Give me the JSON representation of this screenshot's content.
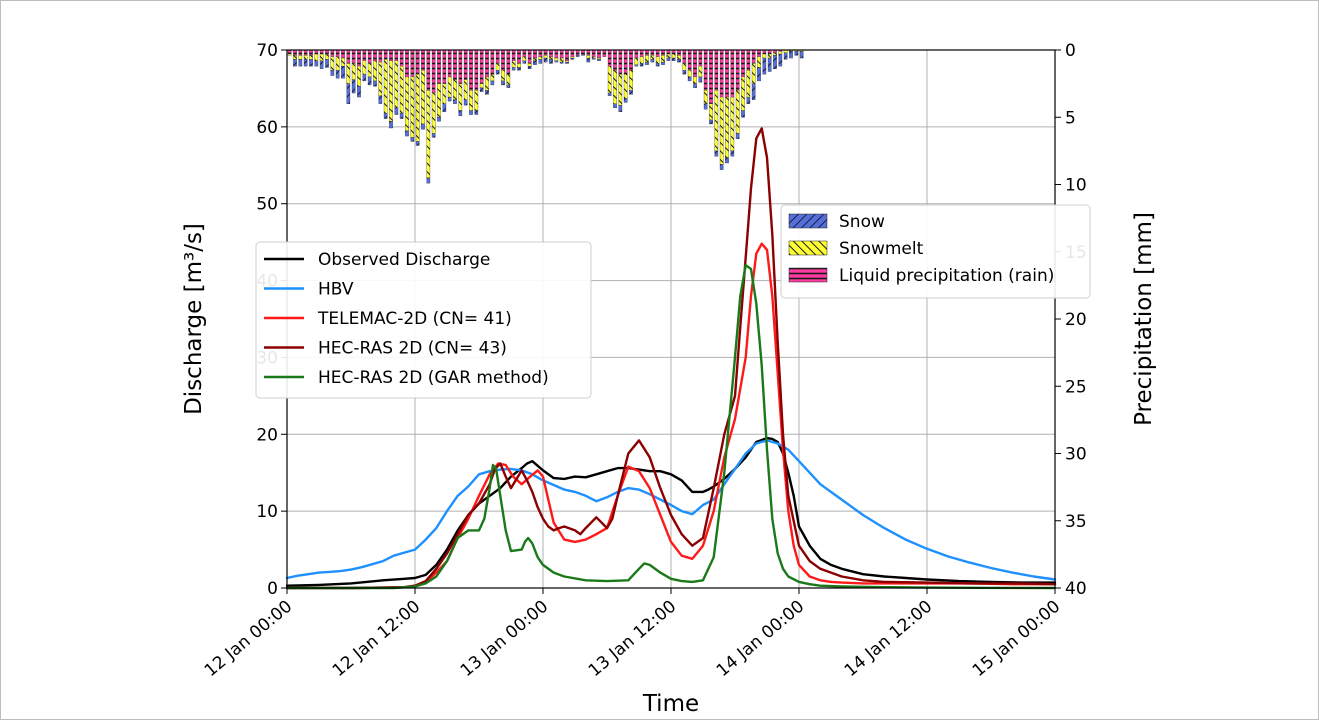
{
  "chart_data": {
    "type": "line",
    "title": "",
    "xlabel": "Time",
    "ylabel": "Discharge [m³/s]",
    "y2label": "Precipitation [mm]",
    "x_ticks": [
      {
        "value": 0,
        "label": "12 Jan 00:00"
      },
      {
        "value": 12,
        "label": "12 Jan 12:00"
      },
      {
        "value": 24,
        "label": "13 Jan 00:00"
      },
      {
        "value": 36,
        "label": "13 Jan 12:00"
      },
      {
        "value": 48,
        "label": "14 Jan 00:00"
      },
      {
        "value": 60,
        "label": "14 Jan 12:00"
      },
      {
        "value": 72,
        "label": "15 Jan 00:00"
      }
    ],
    "x_unit": "hours from 12 Jan 00:00",
    "xlim": [
      0,
      72
    ],
    "ylim": [
      0,
      70
    ],
    "y_ticks": [
      0,
      10,
      20,
      30,
      40,
      50,
      60,
      70
    ],
    "y2lim_inverted": [
      0,
      40
    ],
    "y2_ticks": [
      0,
      5,
      10,
      15,
      20,
      25,
      30,
      35,
      40
    ],
    "grid": true,
    "legend_lines_position": "center-left",
    "legend_bars_position": "upper-right",
    "series": [
      {
        "name": "Observed Discharge",
        "color": "#000000",
        "x": [
          0,
          3,
          6,
          9,
          11,
          12,
          13,
          14,
          15,
          16,
          17,
          18,
          19,
          20,
          21,
          22,
          22.5,
          23,
          24,
          25,
          26,
          27,
          28,
          29,
          30,
          31,
          32,
          33,
          34,
          35,
          36,
          37,
          38,
          39,
          39.5,
          40,
          41,
          42,
          43,
          44,
          45,
          45.5,
          46,
          46.5,
          47,
          47.5,
          48,
          49,
          50,
          51,
          52,
          54,
          56,
          58,
          60,
          63,
          66,
          69,
          72
        ],
        "y": [
          0.3,
          0.4,
          0.6,
          1.0,
          1.2,
          1.3,
          1.7,
          3.0,
          5.0,
          7.5,
          9.5,
          11.0,
          12.0,
          13.0,
          14.5,
          15.6,
          16.2,
          16.5,
          15.3,
          14.3,
          14.2,
          14.5,
          14.4,
          14.8,
          15.2,
          15.6,
          15.6,
          15.4,
          15.2,
          15.2,
          14.8,
          14.0,
          12.5,
          12.5,
          12.8,
          13.2,
          14.2,
          15.5,
          17.0,
          19.0,
          19.5,
          19.4,
          19.0,
          17.5,
          15.0,
          12.0,
          8.0,
          5.5,
          3.8,
          3.0,
          2.5,
          1.8,
          1.5,
          1.3,
          1.1,
          0.9,
          0.8,
          0.7,
          0.7
        ]
      },
      {
        "name": "HBV",
        "color": "#1e90ff",
        "x": [
          0,
          1,
          2,
          3,
          4,
          5,
          6,
          7,
          8,
          9,
          10,
          11,
          12,
          13,
          14,
          15,
          16,
          17,
          18,
          19,
          20,
          21,
          22,
          23,
          24,
          25,
          26,
          27,
          28,
          29,
          30,
          31,
          32,
          33,
          34,
          35,
          36,
          37,
          38,
          39,
          40,
          41,
          42,
          43,
          44,
          45,
          46,
          47,
          48,
          49,
          50,
          52,
          54,
          56,
          58,
          60,
          62,
          64,
          66,
          68,
          70,
          72
        ],
        "y": [
          1.3,
          1.6,
          1.8,
          2.0,
          2.1,
          2.2,
          2.4,
          2.7,
          3.1,
          3.5,
          4.2,
          4.6,
          5.0,
          6.3,
          7.8,
          10.0,
          12.0,
          13.2,
          14.8,
          15.2,
          15.4,
          15.5,
          15.3,
          14.8,
          14.0,
          13.4,
          12.8,
          12.5,
          12.0,
          11.3,
          11.8,
          12.5,
          13.0,
          12.8,
          12.2,
          11.5,
          10.8,
          10.0,
          9.6,
          10.8,
          11.5,
          13.5,
          15.5,
          17.5,
          18.8,
          19.2,
          18.8,
          18.0,
          16.5,
          15.0,
          13.5,
          11.5,
          9.5,
          7.8,
          6.3,
          5.1,
          4.1,
          3.3,
          2.6,
          2.0,
          1.5,
          1.1
        ]
      },
      {
        "name": "TELEMAC-2D (CN= 41)",
        "color": "#ff1a1a",
        "x": [
          0,
          6,
          9,
          11,
          12,
          13,
          14,
          15,
          16,
          17,
          18,
          19,
          19.8,
          20.5,
          21.2,
          22,
          22.8,
          23.5,
          24,
          24.5,
          25,
          26,
          27,
          28,
          29,
          30,
          31,
          32,
          33,
          34,
          35,
          36,
          37,
          38,
          39,
          40,
          41,
          42,
          43,
          43.5,
          44,
          44.5,
          45,
          45.5,
          46,
          46.5,
          47,
          47.5,
          48,
          49,
          50,
          51,
          52,
          54,
          56,
          58,
          60,
          64,
          68,
          72
        ],
        "y": [
          0,
          0,
          0.05,
          0.1,
          0.3,
          0.8,
          2.0,
          3.5,
          6.5,
          9.0,
          12.0,
          14.8,
          16.2,
          16.0,
          14.5,
          13.5,
          14.5,
          15.3,
          14.5,
          11.5,
          8.5,
          6.3,
          6.0,
          6.3,
          7.0,
          7.8,
          12.0,
          15.8,
          15.2,
          13.0,
          9.5,
          6.0,
          4.2,
          3.8,
          5.5,
          10.0,
          17.0,
          22.0,
          30.0,
          38.0,
          43.5,
          44.8,
          44.0,
          38.0,
          28.0,
          18.0,
          10.0,
          5.5,
          3.0,
          1.5,
          1.0,
          0.8,
          0.7,
          0.6,
          0.6,
          0.6,
          0.6,
          0.6,
          0.5,
          0.5
        ]
      },
      {
        "name": "HEC-RAS 2D (CN= 43)",
        "color": "#8b0000",
        "x": [
          0,
          6,
          9,
          11,
          12,
          13,
          14,
          15,
          16,
          17,
          18,
          19,
          19.5,
          20,
          20.5,
          21,
          22,
          22.5,
          23,
          23.5,
          24,
          24.5,
          25,
          25.5,
          26,
          27,
          27.5,
          28,
          29,
          29.5,
          30,
          30.5,
          31,
          32,
          33,
          34,
          35,
          36,
          37,
          38,
          39,
          40,
          41,
          42,
          42.5,
          43,
          43.5,
          44,
          44.5,
          45,
          45.5,
          46,
          46.5,
          47,
          48,
          49,
          50,
          52,
          54,
          56,
          60,
          64,
          68,
          72
        ],
        "y": [
          0,
          0,
          0.05,
          0.1,
          0.3,
          0.9,
          2.5,
          4.5,
          7.0,
          9.5,
          11.0,
          13.5,
          15.5,
          16.2,
          14.5,
          13.0,
          15.3,
          14.0,
          12.5,
          10.5,
          9.0,
          8.0,
          7.5,
          7.8,
          8.0,
          7.5,
          7.0,
          7.8,
          9.2,
          8.5,
          7.8,
          9.0,
          12.0,
          17.5,
          19.2,
          17.0,
          13.0,
          9.5,
          7.0,
          5.5,
          6.5,
          13.0,
          20.0,
          25.0,
          34.0,
          43.0,
          52.0,
          58.5,
          59.8,
          56.0,
          46.0,
          32.0,
          20.0,
          12.0,
          5.5,
          3.5,
          2.5,
          1.5,
          1.0,
          0.8,
          0.7,
          0.6,
          0.6,
          0.5
        ]
      },
      {
        "name": "HEC-RAS 2D (GAR method)",
        "color": "#1a7a1a",
        "x": [
          0,
          6,
          10,
          12,
          13,
          14,
          15,
          16,
          17,
          18,
          18.5,
          19,
          19.3,
          19.6,
          20,
          20.5,
          21,
          22,
          22.3,
          22.6,
          23,
          23.5,
          24,
          25,
          26,
          28,
          30,
          32,
          33,
          33.5,
          34,
          35,
          36,
          37,
          38,
          39,
          40,
          41,
          42,
          42.5,
          43,
          43.5,
          44,
          44.5,
          45,
          45.5,
          46,
          46.5,
          47,
          48,
          49,
          50,
          52,
          56,
          60,
          64,
          68,
          72
        ],
        "y": [
          0,
          0,
          0,
          0.2,
          0.6,
          1.5,
          3.5,
          6.5,
          7.5,
          7.5,
          9.0,
          13.0,
          16.0,
          15.5,
          12.0,
          7.5,
          4.8,
          5.0,
          6.0,
          6.5,
          5.8,
          4.0,
          3.0,
          2.0,
          1.5,
          1.0,
          0.9,
          1.0,
          2.5,
          3.2,
          3.0,
          2.0,
          1.2,
          0.9,
          0.8,
          1.0,
          4.0,
          15.0,
          30.0,
          38.0,
          42.0,
          41.5,
          37.0,
          29.0,
          18.0,
          9.0,
          4.5,
          2.5,
          1.5,
          0.8,
          0.5,
          0.3,
          0.2,
          0.1,
          0.05,
          0.02,
          0.01,
          0
        ]
      }
    ],
    "precip_legend": [
      {
        "name": "Snow",
        "color": "#5470d8",
        "pattern": "hatch-diagonal"
      },
      {
        "name": "Snowmelt",
        "color": "#ffff33",
        "pattern": "hatch-back-diagonal"
      },
      {
        "name": "Liquid precipitation (rain)",
        "color": "#ff3da0",
        "pattern": "hatch-horizontal"
      }
    ],
    "precip_bars": {
      "x": [
        0,
        0.5,
        1,
        1.5,
        2,
        2.5,
        3,
        3.5,
        4,
        4.5,
        5,
        5.5,
        6,
        6.5,
        7,
        7.5,
        8,
        8.5,
        9,
        9.5,
        10,
        10.5,
        11,
        11.5,
        12,
        12.5,
        13,
        13.5,
        14,
        14.5,
        15,
        15.5,
        16,
        16.5,
        17,
        17.5,
        18,
        18.5,
        19,
        19.5,
        20,
        20.5,
        21,
        21.5,
        22,
        22.5,
        23,
        23.5,
        24,
        24.5,
        25,
        25.5,
        26,
        26.5,
        27,
        27.5,
        28,
        28.5,
        29,
        29.5,
        30,
        30.5,
        31,
        31.5,
        32,
        32.5,
        33,
        33.5,
        34,
        34.5,
        35,
        35.5,
        36,
        36.5,
        37,
        37.5,
        38,
        38.5,
        39,
        39.5,
        40,
        40.5,
        41,
        41.5,
        42,
        42.5,
        43,
        43.5,
        44,
        44.5,
        45,
        45.5,
        46,
        46.5,
        47,
        47.5,
        48,
        48.5,
        49,
        49.5,
        50,
        50.5,
        51,
        51.5,
        52,
        52.5,
        53,
        53.5,
        54,
        54.5,
        55,
        55.5,
        56,
        56.5,
        57,
        57.5,
        58,
        58.5,
        59,
        59.5,
        60,
        60.5,
        61,
        61.5,
        62,
        62.5,
        63,
        63.5,
        64,
        64.5,
        65,
        65.5,
        66,
        66.5,
        67,
        67.5,
        68,
        68.5,
        69,
        69.5,
        70,
        70.5,
        71,
        71.5
      ],
      "rain": [
        0.3,
        0.4,
        0.4,
        0.4,
        0.4,
        0.3,
        0.3,
        0.3,
        0.5,
        0.5,
        0.6,
        1.0,
        1.0,
        1.2,
        0.8,
        1.0,
        0.8,
        0.9,
        0.7,
        0.8,
        0.8,
        1.2,
        2.0,
        2.0,
        1.8,
        1.5,
        3.0,
        3.2,
        2.5,
        2.5,
        2.0,
        2.2,
        2.5,
        2.2,
        3.0,
        3.0,
        2.5,
        2.0,
        1.8,
        1.0,
        1.5,
        1.8,
        0.8,
        1.0,
        0.5,
        1.0,
        0.6,
        0.5,
        0.4,
        0.5,
        0.6,
        0.6,
        0.8,
        0.5,
        0.4,
        0.3,
        0.4,
        0.5,
        0.6,
        0.5,
        1.2,
        1.5,
        1.8,
        1.8,
        1.5,
        0.6,
        0.5,
        0.4,
        0.4,
        0.5,
        0.4,
        0.3,
        0.3,
        0.4,
        1.0,
        1.5,
        2.0,
        1.2,
        3.0,
        4.0,
        3.0,
        3.5,
        3.5,
        3.5,
        3.0,
        2.0,
        1.5,
        1.0,
        0.5,
        0.3,
        0.3,
        0.2,
        0.1,
        0,
        0,
        0,
        0,
        0,
        0,
        0,
        0,
        0,
        0,
        0,
        0,
        0,
        0,
        0,
        0,
        0,
        0,
        0,
        0,
        0,
        0,
        0,
        0,
        0,
        0,
        0,
        0,
        0,
        0,
        0,
        0,
        0,
        0,
        0,
        0,
        0,
        0,
        0,
        0,
        0,
        0,
        0,
        0,
        0,
        0,
        0,
        0,
        0,
        0,
        0
      ],
      "snowmelt": [
        0.1,
        0.3,
        0.3,
        0.3,
        0.3,
        0.5,
        0.5,
        0.4,
        1.0,
        1.0,
        0.6,
        1.5,
        1.2,
        1.5,
        1.0,
        1.0,
        1.5,
        2.5,
        4.0,
        4.5,
        3.5,
        3.5,
        4.0,
        4.5,
        5.0,
        4.0,
        6.5,
        3.0,
        2.5,
        1.5,
        1.5,
        1.5,
        2.0,
        1.5,
        1.5,
        1.5,
        0.3,
        1.0,
        0.5,
        0.5,
        0.8,
        0.8,
        0.5,
        0.3,
        0.3,
        0.2,
        0.2,
        0.2,
        0.2,
        0.2,
        0.2,
        0.3,
        0.1,
        0.1,
        0,
        0,
        0.2,
        0.1,
        0.1,
        0,
        2.0,
        2.5,
        2.3,
        1.8,
        1.5,
        0.5,
        0.5,
        0.5,
        0.3,
        0.5,
        0.5,
        0.3,
        0.3,
        0.3,
        0.5,
        0.5,
        0.5,
        0.8,
        1.0,
        1.2,
        4.5,
        5.0,
        4.5,
        4.0,
        3.2,
        2.5,
        2.0,
        1.5,
        0.8,
        0.3,
        0.3,
        0.2,
        0.2,
        0.2,
        0.1,
        0.1,
        0.1,
        0,
        0,
        0,
        0,
        0,
        0,
        0,
        0,
        0,
        0,
        0,
        0,
        0,
        0,
        0,
        0,
        0,
        0,
        0,
        0,
        0,
        0,
        0,
        0,
        0,
        0,
        0,
        0,
        0,
        0,
        0,
        0,
        0,
        0,
        0,
        0,
        0,
        0,
        0,
        0,
        0,
        0,
        0
      ],
      "snow": [
        0,
        0.5,
        0.5,
        0.5,
        0.5,
        0.4,
        0.6,
        0.6,
        0.4,
        0.6,
        0.9,
        1.5,
        1.0,
        0.8,
        0.5,
        0.6,
        0.4,
        0.6,
        0.4,
        0.5,
        0.5,
        0.4,
        0.4,
        0.3,
        0.3,
        0.4,
        0.4,
        0.3,
        0.3,
        0.6,
        0.3,
        0.3,
        0.4,
        0.4,
        0.3,
        0.3,
        0.3,
        0.3,
        0.3,
        0.3,
        0.3,
        0.2,
        0.2,
        0.2,
        0.2,
        0.2,
        0.3,
        0.3,
        0.3,
        0.3,
        0.1,
        0.1,
        0.1,
        0.1,
        0.1,
        0.1,
        0.3,
        0.1,
        0.1,
        0,
        0.2,
        0.3,
        0.5,
        0.3,
        0.3,
        0.1,
        0.2,
        0.2,
        0.2,
        0.2,
        0.2,
        0.2,
        0.2,
        0.2,
        0.3,
        0.3,
        0.3,
        0.4,
        0.4,
        0.3,
        0.4,
        0.4,
        0.4,
        0.4,
        0.4,
        0.5,
        0.5,
        1.2,
        1.0,
        1.2,
        1.0,
        1.0,
        0.9,
        0.5,
        0.5,
        0.3,
        0.5,
        0,
        0,
        0,
        0,
        0,
        0,
        0,
        0,
        0,
        0,
        0,
        0,
        0,
        0,
        0,
        0,
        0,
        0,
        0,
        0,
        0,
        0,
        0,
        0,
        0,
        0,
        0,
        0,
        0,
        0,
        0,
        0,
        0,
        0,
        0,
        0,
        0,
        0,
        0,
        0,
        0,
        0,
        0,
        0,
        0,
        0,
        0
      ]
    }
  }
}
